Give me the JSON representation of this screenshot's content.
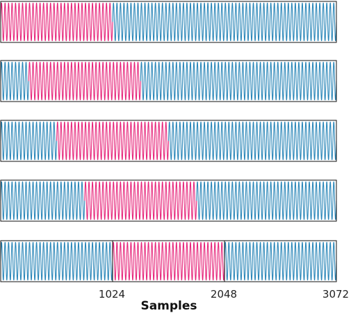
{
  "chart_data": {
    "type": "line",
    "xlabel": "Samples",
    "xlim": [
      0,
      3072
    ],
    "ylim": [
      -1,
      1
    ],
    "xticks": [
      {
        "value": 1024,
        "label": "1024"
      },
      {
        "value": 2048,
        "label": "2048"
      },
      {
        "value": 3072,
        "label": "3072"
      }
    ],
    "cycles_total": 96,
    "colors": {
      "signal": "#2a86b8",
      "window": "#e6257a",
      "frame": "#111111"
    },
    "panels": [
      {
        "window": [
          0,
          1024
        ]
      },
      {
        "window": [
          256,
          1280
        ]
      },
      {
        "window": [
          512,
          1536
        ]
      },
      {
        "window": [
          768,
          1792
        ]
      },
      {
        "window": [
          1024,
          2048
        ],
        "boundary_marks": [
          1024,
          2048
        ]
      }
    ]
  }
}
